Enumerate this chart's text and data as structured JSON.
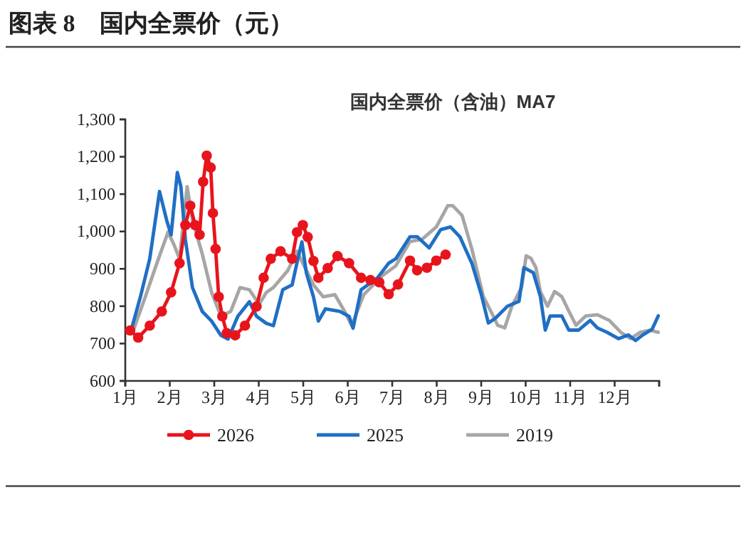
{
  "chart_data": {
    "type": "line",
    "title": "图表 8　国内全票价（元）",
    "subtitle": "国内全票价（含油）MA7",
    "xlim": [
      1,
      13
    ],
    "xticks": [
      {
        "value": 1,
        "label": "1月"
      },
      {
        "value": 2,
        "label": "2月"
      },
      {
        "value": 3,
        "label": "3月"
      },
      {
        "value": 4,
        "label": "4月"
      },
      {
        "value": 5,
        "label": "5月"
      },
      {
        "value": 6,
        "label": "6月"
      },
      {
        "value": 7,
        "label": "7月"
      },
      {
        "value": 8,
        "label": "8月"
      },
      {
        "value": 9,
        "label": "9月"
      },
      {
        "value": 10,
        "label": "10月"
      },
      {
        "value": 11,
        "label": "11月"
      },
      {
        "value": 12,
        "label": "12月"
      },
      {
        "value": 13,
        "label": null
      }
    ],
    "ylim": [
      600,
      1300
    ],
    "yticks": [
      {
        "value": 600,
        "label": "600"
      },
      {
        "value": 700,
        "label": "700"
      },
      {
        "value": 800,
        "label": "800"
      },
      {
        "value": 900,
        "label": "900"
      },
      {
        "value": 1000,
        "label": "1,000"
      },
      {
        "value": 1100,
        "label": "1,100"
      },
      {
        "value": 1200,
        "label": "1,200"
      },
      {
        "value": 1300,
        "label": "1,300"
      }
    ],
    "grid": false,
    "legend": "bottom",
    "series": [
      {
        "name": "2026",
        "color": "#e8141c",
        "marker": "circle",
        "x": [
          1.11,
          1.29,
          1.55,
          1.82,
          2.03,
          2.22,
          2.35,
          2.46,
          2.57,
          2.67,
          2.75,
          2.83,
          2.92,
          2.97,
          3.03,
          3.1,
          3.18,
          3.28,
          3.47,
          3.69,
          3.95,
          4.11,
          4.27,
          4.49,
          4.75,
          4.86,
          4.99,
          5.1,
          5.23,
          5.34,
          5.55,
          5.77,
          6.03,
          6.3,
          6.51,
          6.71,
          6.92,
          7.13,
          7.4,
          7.56,
          7.78,
          7.99,
          8.2
        ],
        "values": [
          735,
          716,
          748,
          786,
          837,
          915,
          1017,
          1069,
          1017,
          991,
          1133,
          1203,
          1171,
          1049,
          953,
          825,
          773,
          728,
          722,
          748,
          799,
          876,
          927,
          947,
          927,
          998,
          1017,
          985,
          921,
          876,
          902,
          934,
          915,
          876,
          870,
          864,
          832,
          858,
          922,
          896,
          903,
          922,
          938
        ]
      },
      {
        "name": "2025",
        "color": "#1f6fc5",
        "marker": "none",
        "x": [
          1.13,
          1.34,
          1.55,
          1.77,
          1.93,
          2.03,
          2.17,
          2.25,
          2.35,
          2.51,
          2.73,
          2.94,
          3.15,
          3.31,
          3.53,
          3.79,
          3.95,
          4.17,
          4.33,
          4.54,
          4.75,
          4.88,
          4.97,
          5.07,
          5.23,
          5.34,
          5.5,
          5.82,
          6.03,
          6.12,
          6.3,
          6.67,
          6.92,
          7.08,
          7.4,
          7.56,
          7.83,
          8.09,
          8.31,
          8.52,
          8.79,
          9.0,
          9.16,
          9.32,
          9.59,
          9.85,
          9.96,
          10.17,
          10.33,
          10.44,
          10.55,
          10.81,
          10.97,
          11.19,
          11.45,
          11.61,
          11.83,
          12.09,
          12.31,
          12.47,
          12.63,
          12.84,
          12.98
        ],
        "values": [
          735,
          825,
          927,
          1107,
          1030,
          991,
          1158,
          1120,
          979,
          850,
          786,
          760,
          722,
          712,
          773,
          812,
          773,
          754,
          748,
          844,
          857,
          927,
          972,
          889,
          825,
          760,
          793,
          786,
          773,
          741,
          844,
          876,
          915,
          927,
          986,
          986,
          956,
          1005,
          1012,
          986,
          915,
          832,
          755,
          768,
          800,
          813,
          903,
          890,
          826,
          736,
          774,
          774,
          736,
          736,
          762,
          742,
          730,
          713,
          723,
          708,
          723,
          738,
          774
        ]
      },
      {
        "name": "2019",
        "color": "#a6a6a6",
        "marker": "none",
        "x": [
          1.18,
          1.45,
          1.71,
          1.96,
          2.09,
          2.22,
          2.39,
          2.51,
          2.73,
          2.94,
          3.15,
          3.37,
          3.58,
          3.79,
          4.01,
          4.17,
          4.33,
          4.65,
          4.86,
          5.02,
          5.23,
          5.45,
          5.71,
          5.93,
          6.09,
          6.36,
          6.78,
          7.08,
          7.4,
          7.67,
          7.99,
          8.25,
          8.36,
          8.57,
          8.79,
          9.05,
          9.27,
          9.37,
          9.53,
          9.69,
          9.91,
          10.01,
          10.12,
          10.23,
          10.33,
          10.49,
          10.65,
          10.81,
          10.97,
          11.13,
          11.35,
          11.61,
          11.88,
          12.14,
          12.36,
          12.57,
          12.79,
          12.98
        ],
        "values": [
          735,
          825,
          915,
          998,
          966,
          927,
          1120,
          1030,
          940,
          837,
          773,
          786,
          850,
          844,
          805,
          837,
          850,
          895,
          947,
          908,
          857,
          825,
          831,
          786,
          748,
          831,
          882,
          908,
          973,
          979,
          1012,
          1069,
          1069,
          1043,
          953,
          825,
          774,
          749,
          742,
          800,
          851,
          935,
          928,
          903,
          839,
          800,
          839,
          826,
          787,
          749,
          774,
          777,
          762,
          730,
          713,
          730,
          736,
          730
        ]
      }
    ]
  }
}
